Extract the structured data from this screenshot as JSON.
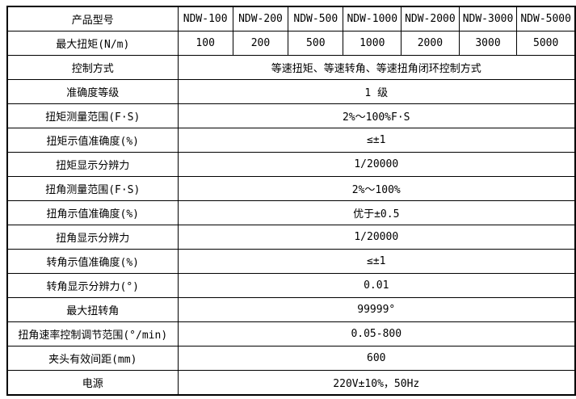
{
  "table": {
    "header_row": {
      "label": "产品型号",
      "models": [
        "NDW-100",
        "NDW-200",
        "NDW-500",
        "NDW-1000",
        "NDW-2000",
        "NDW-3000",
        "NDW-5000"
      ]
    },
    "torque_row": {
      "label": "最大扭矩(N/m)",
      "values": [
        "100",
        "200",
        "500",
        "1000",
        "2000",
        "3000",
        "5000"
      ]
    },
    "spec_rows": [
      {
        "label": "控制方式",
        "value": "等速扭矩、等速转角、等速扭角闭环控制方式"
      },
      {
        "label": "准确度等级",
        "value": "1 级"
      },
      {
        "label": "扭矩测量范围(F·S)",
        "value": "2%～100%F·S"
      },
      {
        "label": "扭矩示值准确度(%)",
        "value": "≤±1"
      },
      {
        "label": "扭矩显示分辨力",
        "value": "1/20000"
      },
      {
        "label": "扭角测量范围(F·S)",
        "value": "2%～100%"
      },
      {
        "label": "扭角示值准确度(%)",
        "value": "优于±0.5"
      },
      {
        "label": "扭角显示分辨力",
        "value": "1/20000"
      },
      {
        "label": "转角示值准确度(%)",
        "value": "≤±1"
      },
      {
        "label": "转角显示分辨力(°)",
        "value": "0.01"
      },
      {
        "label": "最大扭转角",
        "value": "99999°"
      },
      {
        "label": "扭角速率控制调节范围(°/min)",
        "value": "0.05-800"
      },
      {
        "label": "夹头有效间距(mm)",
        "value": "600"
      },
      {
        "label": "电源",
        "value": "220V±10%，50Hz"
      }
    ]
  }
}
